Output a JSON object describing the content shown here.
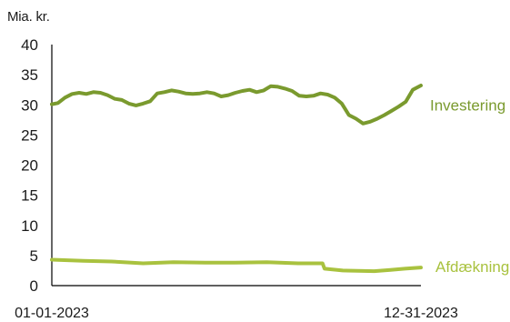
{
  "chart_data": {
    "type": "line",
    "ylabel": "Mia. kr.",
    "ylim": [
      0,
      40
    ],
    "yticks": [
      "0",
      "5",
      "10",
      "15",
      "20",
      "25",
      "30",
      "35",
      "40"
    ],
    "xticks": [
      "01-01-2023",
      "12-31-2023"
    ],
    "grid": false,
    "colors": {
      "investering": "#7a9a2e",
      "afdaekning": "#a9c23f",
      "axis": "#000000"
    },
    "series": [
      {
        "name": "Investering",
        "label_color": "#7a9a2e",
        "points": [
          [
            "2023-01-01",
            30.1
          ],
          [
            "2023-01-07",
            30.3
          ],
          [
            "2023-01-14",
            31.2
          ],
          [
            "2023-01-21",
            31.8
          ],
          [
            "2023-01-28",
            32.0
          ],
          [
            "2023-02-04",
            31.8
          ],
          [
            "2023-02-11",
            32.1
          ],
          [
            "2023-02-18",
            32.0
          ],
          [
            "2023-02-25",
            31.6
          ],
          [
            "2023-03-04",
            31.0
          ],
          [
            "2023-03-11",
            30.8
          ],
          [
            "2023-03-18",
            30.2
          ],
          [
            "2023-03-25",
            29.9
          ],
          [
            "2023-04-01",
            30.2
          ],
          [
            "2023-04-08",
            30.6
          ],
          [
            "2023-04-15",
            31.9
          ],
          [
            "2023-04-22",
            32.1
          ],
          [
            "2023-04-29",
            32.4
          ],
          [
            "2023-05-06",
            32.2
          ],
          [
            "2023-05-13",
            31.9
          ],
          [
            "2023-05-20",
            31.8
          ],
          [
            "2023-05-27",
            31.9
          ],
          [
            "2023-06-03",
            32.1
          ],
          [
            "2023-06-10",
            31.9
          ],
          [
            "2023-06-17",
            31.4
          ],
          [
            "2023-06-24",
            31.6
          ],
          [
            "2023-07-01",
            32.0
          ],
          [
            "2023-07-08",
            32.3
          ],
          [
            "2023-07-15",
            32.5
          ],
          [
            "2023-07-22",
            32.1
          ],
          [
            "2023-07-29",
            32.4
          ],
          [
            "2023-08-05",
            33.1
          ],
          [
            "2023-08-12",
            33.0
          ],
          [
            "2023-08-19",
            32.7
          ],
          [
            "2023-08-26",
            32.3
          ],
          [
            "2023-09-02",
            31.5
          ],
          [
            "2023-09-09",
            31.4
          ],
          [
            "2023-09-16",
            31.5
          ],
          [
            "2023-09-23",
            31.9
          ],
          [
            "2023-09-30",
            31.7
          ],
          [
            "2023-10-07",
            31.2
          ],
          [
            "2023-10-14",
            30.2
          ],
          [
            "2023-10-21",
            28.3
          ],
          [
            "2023-10-28",
            27.7
          ],
          [
            "2023-11-04",
            26.9
          ],
          [
            "2023-11-11",
            27.2
          ],
          [
            "2023-11-18",
            27.7
          ],
          [
            "2023-11-25",
            28.3
          ],
          [
            "2023-12-02",
            29.0
          ],
          [
            "2023-12-09",
            29.7
          ],
          [
            "2023-12-16",
            30.5
          ],
          [
            "2023-12-23",
            32.5
          ],
          [
            "2023-12-31",
            33.2
          ]
        ]
      },
      {
        "name": "Afdækning",
        "label_color": "#a9c23f",
        "points": [
          [
            "2023-01-01",
            4.3
          ],
          [
            "2023-02-01",
            4.1
          ],
          [
            "2023-03-01",
            4.0
          ],
          [
            "2023-04-01",
            3.7
          ],
          [
            "2023-05-01",
            3.9
          ],
          [
            "2023-06-01",
            3.8
          ],
          [
            "2023-07-01",
            3.8
          ],
          [
            "2023-08-01",
            3.9
          ],
          [
            "2023-09-01",
            3.7
          ],
          [
            "2023-09-25",
            3.7
          ],
          [
            "2023-09-27",
            2.8
          ],
          [
            "2023-10-15",
            2.5
          ],
          [
            "2023-11-15",
            2.4
          ],
          [
            "2023-12-01",
            2.6
          ],
          [
            "2023-12-15",
            2.8
          ],
          [
            "2023-12-31",
            3.0
          ]
        ]
      }
    ]
  }
}
